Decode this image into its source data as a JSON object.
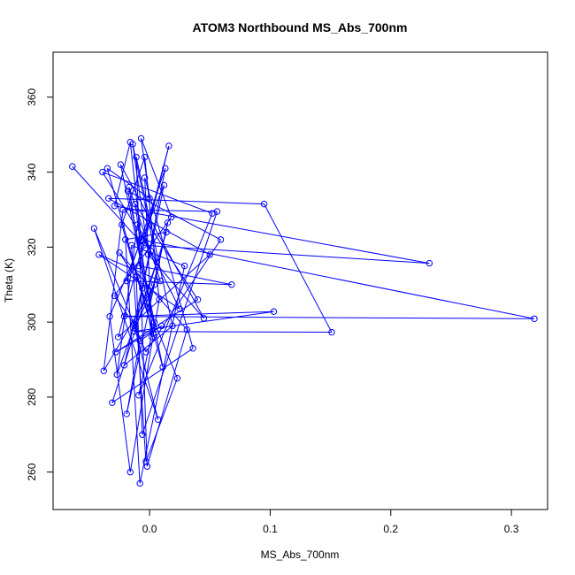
{
  "chart_data": {
    "type": "line",
    "title": "ATOM3 Northbound MS_Abs_700nm",
    "xlabel": "MS_Abs_700nm",
    "ylabel": "Theta (K)",
    "xlim": [
      -0.08,
      0.33
    ],
    "ylim": [
      250,
      372
    ],
    "xticks": [
      0.0,
      0.1,
      0.2,
      0.3
    ],
    "xtick_labels": [
      "0.0",
      "0.1",
      "0.2",
      "0.3"
    ],
    "yticks": [
      260,
      280,
      300,
      320,
      340,
      360
    ],
    "ytick_labels": [
      "260",
      "280",
      "300",
      "320",
      "340",
      "360"
    ],
    "grid": false,
    "markers": "open circles",
    "colors": {
      "series": "#0000ff",
      "axis": "#000000"
    },
    "series": [
      {
        "points": [
          [
            -0.064,
            341.5
          ],
          [
            -0.005,
            320.5
          ],
          [
            0.232,
            315.7
          ],
          [
            -0.029,
            331.0
          ],
          [
            -0.016,
            348.0
          ],
          [
            -0.007,
            322.0
          ],
          [
            0.319,
            300.9
          ],
          [
            -0.021,
            301.5
          ],
          [
            0.103,
            302.8
          ],
          [
            -0.013,
            297.5
          ],
          [
            0.151,
            297.3
          ],
          [
            0.095,
            331.5
          ],
          [
            -0.034,
            333.0
          ],
          [
            0.05,
            318.0
          ],
          [
            -0.026,
            296.0
          ],
          [
            0.016,
            347.0
          ],
          [
            -0.009,
            315.0
          ],
          [
            0.068,
            310.0
          ],
          [
            -0.019,
            311.0
          ],
          [
            0.013,
            341.0
          ],
          [
            -0.012,
            298.5
          ],
          [
            0.004,
            310.0
          ],
          [
            -0.038,
            287.0
          ],
          [
            -0.022,
            330.0
          ],
          [
            0.056,
            329.5
          ],
          [
            -0.006,
            270.0
          ],
          [
            -0.011,
            312.0
          ],
          [
            0.023,
            285.0
          ],
          [
            -0.003,
            262.8
          ],
          [
            -0.015,
            320.5
          ],
          [
            0.029,
            315.0
          ],
          [
            -0.008,
            257.0
          ],
          [
            -0.02,
            322.0
          ],
          [
            0.014,
            324.0
          ],
          [
            -0.031,
            278.5
          ],
          [
            0.036,
            293.0
          ],
          [
            -0.004,
            338.5
          ],
          [
            0.002,
            296.0
          ],
          [
            -0.017,
            336.0
          ],
          [
            0.009,
            311.0
          ],
          [
            -0.042,
            318.0
          ],
          [
            0.025,
            303.5
          ],
          [
            -0.01,
            326.0
          ],
          [
            -0.027,
            286.0
          ],
          [
            0.006,
            316.0
          ],
          [
            -0.014,
            347.5
          ],
          [
            -0.001,
            318.0
          ],
          [
            0.045,
            301.0
          ],
          [
            -0.024,
            342.0
          ],
          [
            0.011,
            288.0
          ],
          [
            -0.035,
            341.0
          ],
          [
            0.0,
            333.0
          ],
          [
            -0.007,
            349.0
          ],
          [
            0.018,
            328.0
          ],
          [
            -0.029,
            307.0
          ],
          [
            -0.013,
            299.5
          ],
          [
            0.007,
            274.0
          ],
          [
            -0.046,
            325.0
          ],
          [
            -0.003,
            292.0
          ],
          [
            0.059,
            322.0
          ],
          [
            -0.018,
            335.0
          ],
          [
            0.004,
            300.0
          ],
          [
            -0.009,
            280.5
          ],
          [
            0.052,
            329.0
          ],
          [
            -0.039,
            340.0
          ],
          [
            0.001,
            319.0
          ],
          [
            -0.021,
            288.5
          ],
          [
            0.019,
            299.0
          ],
          [
            -0.011,
            344.0
          ],
          [
            -0.002,
            261.5
          ],
          [
            0.031,
            298.0
          ],
          [
            -0.025,
            318.5
          ],
          [
            -0.006,
            309.0
          ],
          [
            0.012,
            336.5
          ],
          [
            -0.033,
            301.5
          ],
          [
            -0.016,
            260.0
          ],
          [
            0.008,
            306.0
          ],
          [
            -0.004,
            344.0
          ],
          [
            -0.023,
            326.0
          ],
          [
            0.003,
            297.0
          ],
          [
            -0.012,
            331.5
          ],
          [
            0.04,
            306.0
          ],
          [
            -0.028,
            292.0
          ],
          [
            0.01,
            299.0
          ],
          [
            -0.008,
            295.0
          ],
          [
            -0.019,
            275.5
          ],
          [
            0.015,
            326.5
          ],
          [
            -0.001,
            304.0
          ]
        ]
      }
    ]
  }
}
